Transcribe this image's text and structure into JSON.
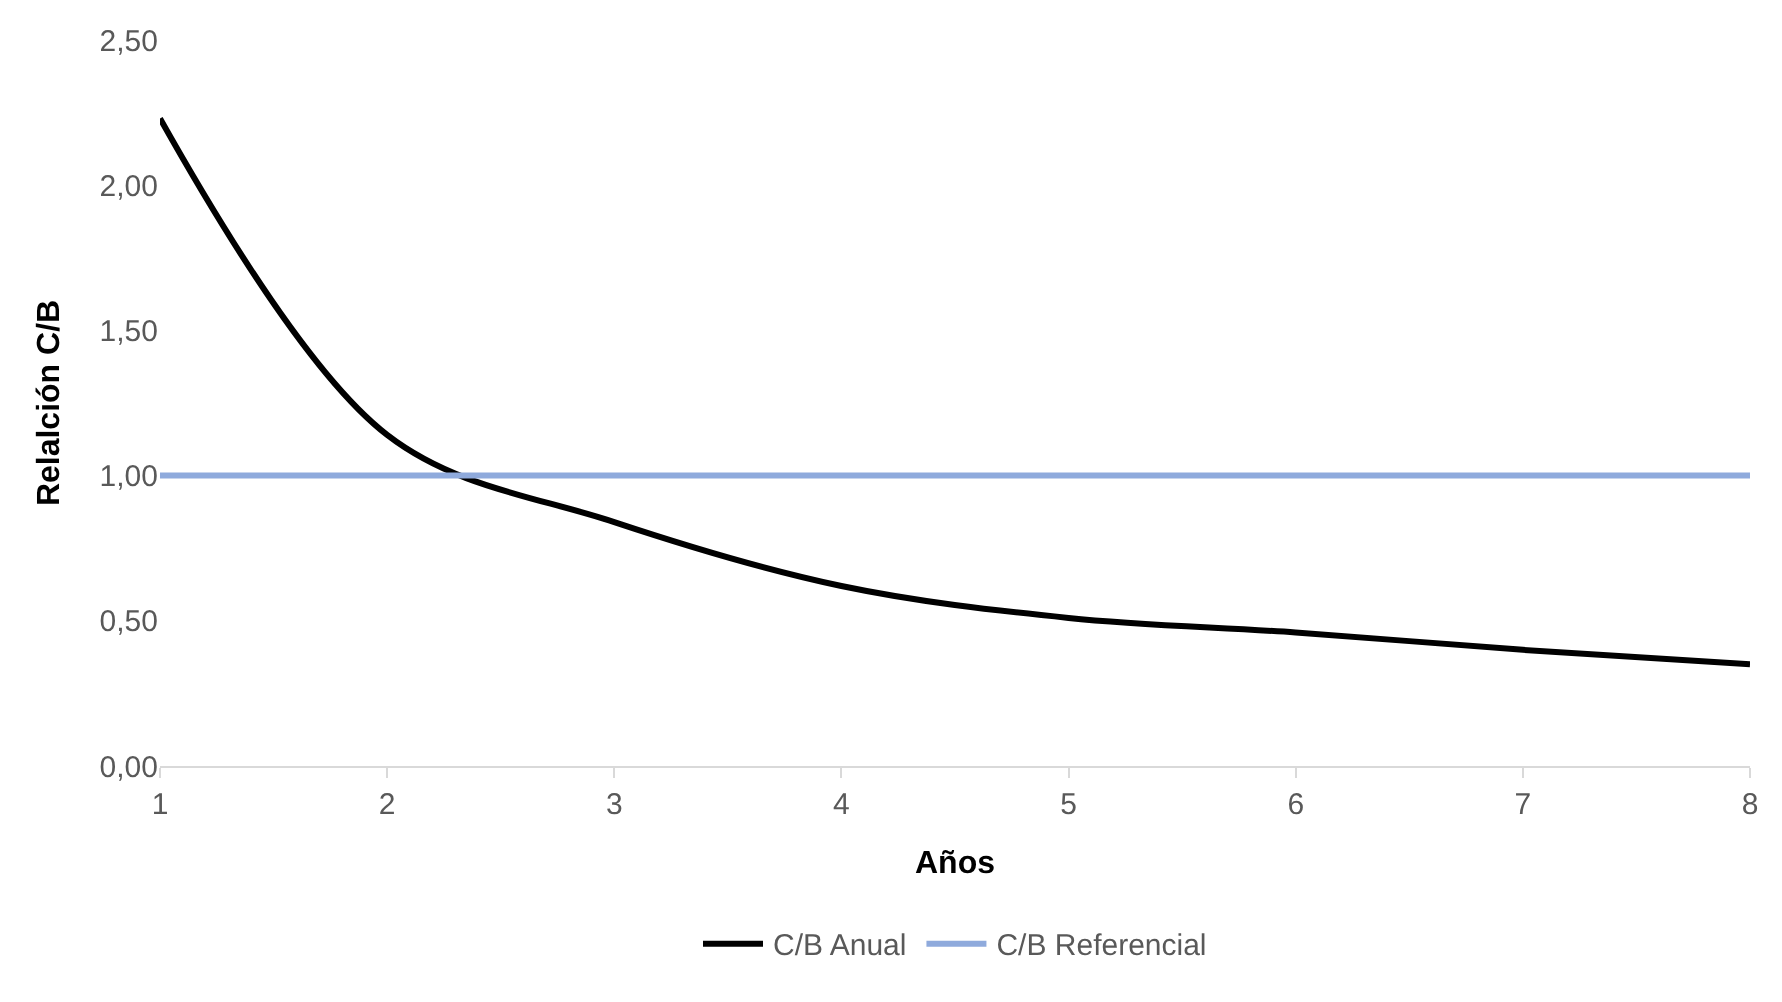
{
  "chart_data": {
    "type": "line",
    "xlabel": "Años",
    "ylabel": "Relalción C/B",
    "x": [
      1,
      2,
      3,
      4,
      5,
      6,
      7,
      8
    ],
    "series": [
      {
        "name": "C/B Anual",
        "color": "#000000",
        "values": [
          2.23,
          1.14,
          0.84,
          0.62,
          0.51,
          0.46,
          0.4,
          0.35
        ]
      },
      {
        "name": "C/B Referencial",
        "color": "#8faadc",
        "values": [
          1,
          1,
          1,
          1,
          1,
          1,
          1,
          1
        ]
      }
    ],
    "xlim": [
      1,
      8
    ],
    "xticks": [
      1,
      2,
      3,
      4,
      5,
      6,
      7,
      8
    ],
    "ylim": [
      0,
      2.5
    ],
    "yticks": [
      {
        "value": 0,
        "label": "0,00"
      },
      {
        "value": 0.5,
        "label": "0,50"
      },
      {
        "value": 1,
        "label": "1,00"
      },
      {
        "value": 1.5,
        "label": "1,50"
      },
      {
        "value": 2,
        "label": "2,00"
      },
      {
        "value": 2.5,
        "label": "2,50"
      }
    ],
    "grid": false,
    "legend": "bottom",
    "marker": "none",
    "line_style": "solid"
  }
}
